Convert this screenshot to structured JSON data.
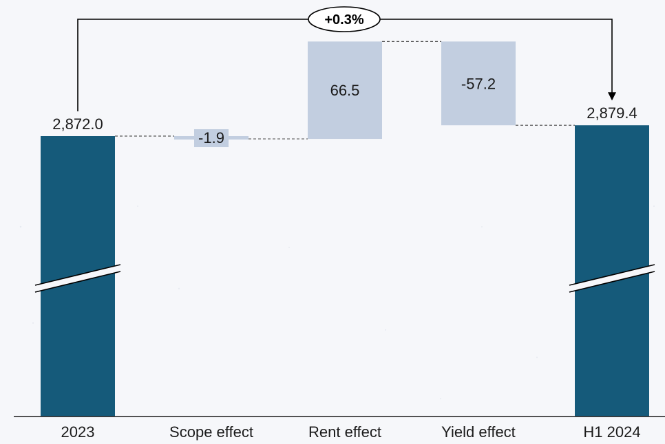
{
  "chart_data": {
    "type": "waterfall",
    "categories": [
      "2023",
      "Scope effect",
      "Rent effect",
      "Yield effect",
      "H1 2024"
    ],
    "values": [
      2872.0,
      -1.9,
      66.5,
      -57.2,
      2879.4
    ],
    "kinds": [
      "total",
      "delta",
      "delta",
      "delta",
      "total"
    ],
    "value_labels": [
      "2,872.0",
      "-1.9",
      "66.5",
      "-57.2",
      "2,879.4"
    ],
    "change_label": "+0.3%",
    "axis_break": true,
    "colors": {
      "total": "#155a7a",
      "delta": "#c2cee0",
      "connector": "#555555",
      "baseline": "#1a1a1a"
    }
  }
}
